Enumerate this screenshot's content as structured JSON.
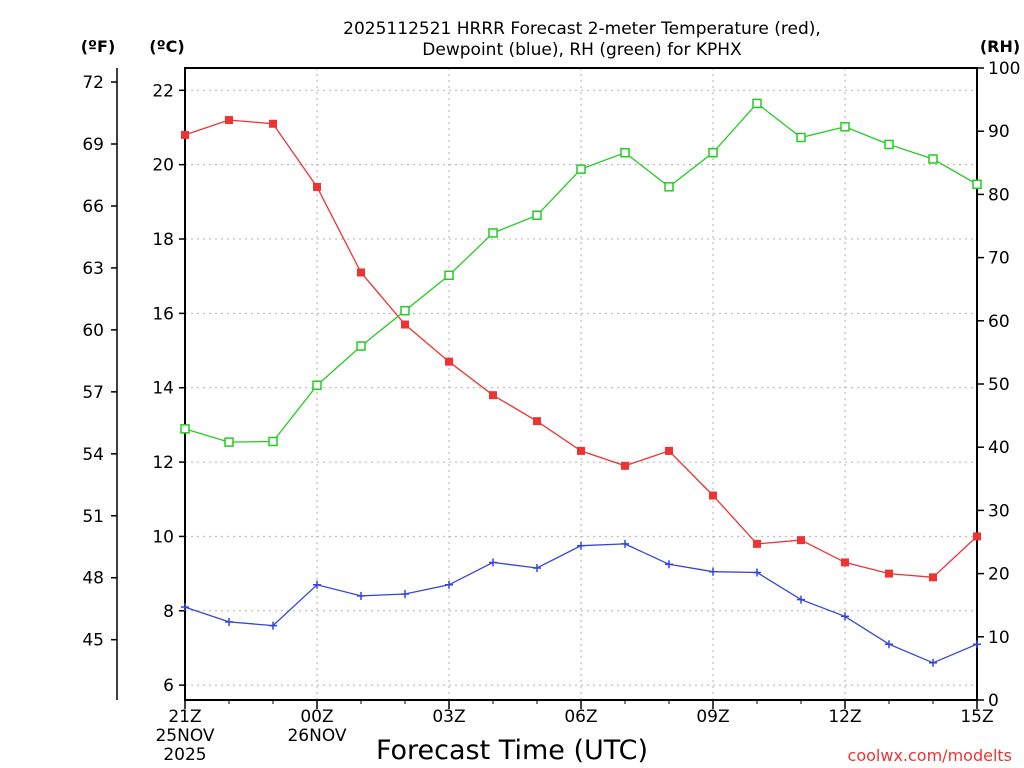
{
  "chart_data": {
    "type": "line",
    "title_lines": [
      "2025112521 HRRR Forecast 2-meter Temperature (red),",
      "Dewpoint (blue), RH (green) for KPHX"
    ],
    "xlabel": "Forecast Time (UTC)",
    "credit": "coolwx.com/modelts",
    "units": {
      "fahrenheit": "(ºF)",
      "celsius": "(ºC)",
      "rh": "(RH)"
    },
    "hours": [
      0,
      1,
      2,
      3,
      4,
      5,
      6,
      7,
      8,
      9,
      10,
      11,
      12,
      13,
      14,
      15,
      16,
      17,
      18
    ],
    "xlim": [
      0,
      18
    ],
    "x_ticks": [
      {
        "hour": 0,
        "lines": [
          "21Z",
          "25NOV",
          "2025"
        ]
      },
      {
        "hour": 3,
        "lines": [
          "00Z",
          "26NOV"
        ]
      },
      {
        "hour": 6,
        "lines": [
          "03Z"
        ]
      },
      {
        "hour": 9,
        "lines": [
          "06Z"
        ]
      },
      {
        "hour": 12,
        "lines": [
          "09Z"
        ]
      },
      {
        "hour": 15,
        "lines": [
          "12Z"
        ]
      },
      {
        "hour": 18,
        "lines": [
          "15Z"
        ]
      }
    ],
    "celsius_axis": {
      "min": 5.6,
      "max": 22.6,
      "ticks": [
        "6",
        "8",
        "10",
        "12",
        "14",
        "16",
        "18",
        "20",
        "22"
      ]
    },
    "fahrenheit_axis": {
      "ticks": [
        "45",
        "48",
        "51",
        "54",
        "57",
        "60",
        "63",
        "66",
        "69",
        "72"
      ]
    },
    "rh_axis": {
      "min": 0,
      "max": 100,
      "ticks": [
        "0",
        "10",
        "20",
        "30",
        "40",
        "50",
        "60",
        "70",
        "80",
        "90",
        "100"
      ]
    },
    "series": [
      {
        "name": "2-meter Temperature",
        "axis": "celsius",
        "color": "#ee3333",
        "marker": "filled-square",
        "values": [
          20.8,
          21.2,
          21.1,
          19.4,
          17.1,
          15.7,
          14.7,
          13.8,
          13.1,
          12.3,
          11.9,
          12.3,
          11.1,
          9.8,
          9.9,
          9.3,
          9.0,
          8.9,
          10.0
        ]
      },
      {
        "name": "Dewpoint",
        "axis": "celsius",
        "color": "#3344dd",
        "marker": "plus",
        "values": [
          8.1,
          7.7,
          7.6,
          8.7,
          8.4,
          8.45,
          8.7,
          9.3,
          9.15,
          9.75,
          9.8,
          9.25,
          9.05,
          9.03,
          8.3,
          7.85,
          7.1,
          6.6,
          7.1
        ]
      },
      {
        "name": "RH",
        "axis": "rh",
        "color": "#22cc22",
        "marker": "open-square",
        "values": [
          42.9,
          40.8,
          40.9,
          49.8,
          56.0,
          61.6,
          67.2,
          73.9,
          76.7,
          84.0,
          86.6,
          81.2,
          86.6,
          94.4,
          89.0,
          90.7,
          87.9,
          85.6,
          81.6
        ]
      }
    ]
  }
}
